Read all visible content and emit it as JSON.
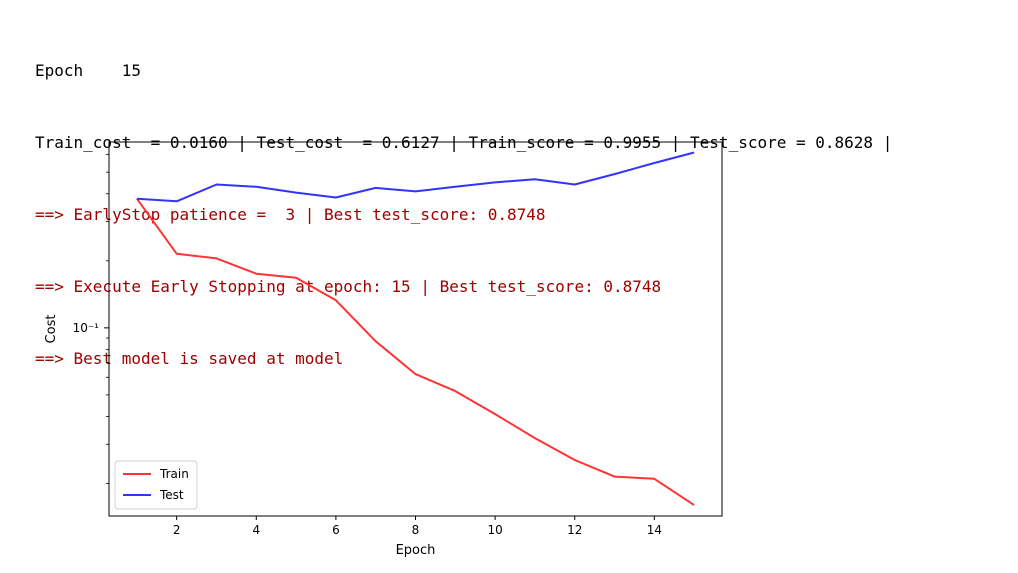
{
  "console": {
    "lines": [
      {
        "text": "Epoch    15",
        "color": "#000000"
      },
      {
        "text": "Train_cost  = 0.0160 | Test_cost  = 0.6127 | Train_score = 0.9955 | Test_score = 0.8628 |",
        "color": "#000000"
      },
      {
        "text": "==> EarlyStop patience =  3 | Best test_score: 0.8748",
        "color": "#a00000"
      },
      {
        "text": "==> Execute Early Stopping at epoch: 15 | Best test_score: 0.8748",
        "color": "#a00000"
      },
      {
        "text": "==> Best model is saved at model",
        "color": "#a00000"
      }
    ]
  },
  "chart_data": {
    "type": "line",
    "xlabel": "Epoch",
    "ylabel": "Cost",
    "yscale": "log",
    "xlim": [
      0.3,
      15.7
    ],
    "ylim": [
      0.0143,
      0.683
    ],
    "xticks": [
      2,
      4,
      6,
      8,
      10,
      12,
      14
    ],
    "xtick_labels": [
      "2",
      "4",
      "6",
      "8",
      "10",
      "12",
      "14"
    ],
    "ytick_label": "10⁻¹",
    "ytick_value": 0.1,
    "grid": false,
    "legend_position": "lower-left",
    "x": [
      1,
      2,
      3,
      4,
      5,
      6,
      7,
      8,
      9,
      10,
      11,
      12,
      13,
      14,
      15
    ],
    "series": [
      {
        "name": "Train",
        "color": "#ff3333",
        "values": [
          0.38,
          0.215,
          0.205,
          0.175,
          0.168,
          0.133,
          0.087,
          0.062,
          0.052,
          0.041,
          0.032,
          0.0255,
          0.0215,
          0.021,
          0.016
        ]
      },
      {
        "name": "Test",
        "color": "#3333ff",
        "values": [
          0.38,
          0.37,
          0.44,
          0.43,
          0.405,
          0.385,
          0.425,
          0.41,
          0.43,
          0.45,
          0.465,
          0.44,
          0.49,
          0.55,
          0.6127
        ]
      }
    ]
  }
}
